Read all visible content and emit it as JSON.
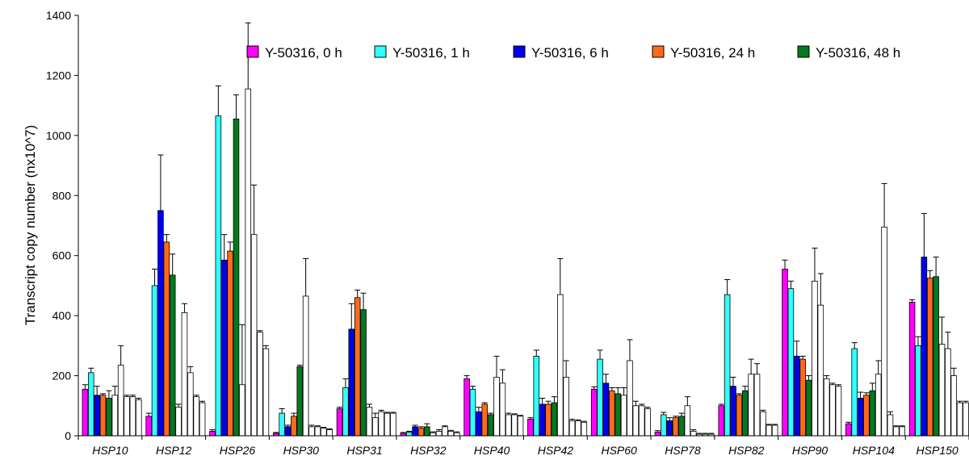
{
  "chart_data": {
    "type": "bar",
    "title": "",
    "xlabel": "",
    "ylabel": "Transcript copy number (nx10^7)",
    "ylim": [
      0,
      1400
    ],
    "yticks": [
      0,
      200,
      400,
      600,
      800,
      1000,
      1200,
      1400
    ],
    "grid": false,
    "legend_position": "top-right",
    "categories": [
      "HSP10",
      "HSP12",
      "HSP26",
      "HSP30",
      "HSP31",
      "HSP32",
      "HSP40",
      "HSP42",
      "HSP60",
      "HSP78",
      "HSP82",
      "HSP90",
      "HSP104",
      "HSP150"
    ],
    "series": [
      {
        "name": "Y-50316, 0 h",
        "color": "#ff00ff",
        "values": [
          155,
          65,
          15,
          8,
          90,
          8,
          190,
          55,
          155,
          12,
          100,
          555,
          40,
          445
        ],
        "errors": [
          15,
          10,
          5,
          3,
          5,
          3,
          10,
          5,
          8,
          5,
          5,
          30,
          5,
          8
        ]
      },
      {
        "name": "Y-50316, 1 h",
        "color": "#33ffff",
        "values": [
          210,
          500,
          1065,
          75,
          160,
          12,
          155,
          265,
          255,
          70,
          470,
          490,
          290,
          300
        ],
        "errors": [
          15,
          55,
          100,
          15,
          30,
          3,
          10,
          20,
          30,
          8,
          50,
          25,
          20,
          30
        ]
      },
      {
        "name": "Y-50316, 6 h",
        "color": "#0000ee",
        "values": [
          135,
          750,
          585,
          30,
          355,
          30,
          80,
          105,
          175,
          50,
          165,
          265,
          125,
          595
        ],
        "errors": [
          30,
          185,
          85,
          5,
          85,
          5,
          15,
          20,
          30,
          10,
          30,
          50,
          20,
          145
        ]
      },
      {
        "name": "Y-50316, 24 h",
        "color": "#ff6a1a",
        "values": [
          135,
          645,
          615,
          65,
          460,
          25,
          105,
          105,
          150,
          60,
          135,
          255,
          135,
          525
        ],
        "errors": [
          5,
          25,
          30,
          10,
          25,
          5,
          5,
          10,
          10,
          5,
          5,
          10,
          8,
          25
        ]
      },
      {
        "name": "Y-50316, 48 h",
        "color": "#007a1f",
        "values": [
          125,
          535,
          1055,
          230,
          420,
          30,
          70,
          110,
          140,
          65,
          150,
          185,
          150,
          530
        ],
        "errors": [
          25,
          70,
          80,
          5,
          55,
          10,
          5,
          20,
          20,
          10,
          15,
          15,
          25,
          65
        ]
      },
      {
        "name": "",
        "color": "#ffffff",
        "outline_only": true,
        "values": [
          135,
          95,
          170,
          465,
          95,
          10,
          195,
          470,
          135,
          100,
          205,
          515,
          205,
          305
        ],
        "errors": [
          30,
          10,
          200,
          125,
          10,
          3,
          70,
          120,
          25,
          30,
          50,
          110,
          45,
          90
        ]
      },
      {
        "name": "",
        "color": "#ffffff",
        "outline_only": true,
        "values": [
          235,
          410,
          1155,
          30,
          60,
          15,
          175,
          195,
          250,
          15,
          205,
          435,
          695,
          290
        ],
        "errors": [
          65,
          30,
          220,
          5,
          15,
          5,
          45,
          55,
          70,
          5,
          35,
          105,
          145,
          55
        ]
      },
      {
        "name": "",
        "color": "#ffffff",
        "outline_only": true,
        "values": [
          130,
          210,
          670,
          30,
          80,
          30,
          70,
          50,
          100,
          5,
          80,
          190,
          70,
          200
        ],
        "errors": [
          5,
          20,
          165,
          3,
          5,
          3,
          5,
          5,
          15,
          3,
          5,
          10,
          10,
          25
        ]
      },
      {
        "name": "",
        "color": "#ffffff",
        "outline_only": true,
        "values": [
          130,
          130,
          345,
          25,
          75,
          15,
          70,
          50,
          100,
          5,
          35,
          170,
          30,
          110
        ],
        "errors": [
          5,
          5,
          5,
          3,
          3,
          3,
          3,
          3,
          5,
          3,
          3,
          5,
          3,
          5
        ]
      },
      {
        "name": "",
        "color": "#ffffff",
        "outline_only": true,
        "values": [
          120,
          110,
          290,
          20,
          75,
          10,
          65,
          45,
          90,
          5,
          35,
          165,
          30,
          110
        ],
        "errors": [
          5,
          5,
          10,
          3,
          3,
          3,
          3,
          3,
          5,
          3,
          3,
          5,
          3,
          5
        ]
      }
    ]
  }
}
